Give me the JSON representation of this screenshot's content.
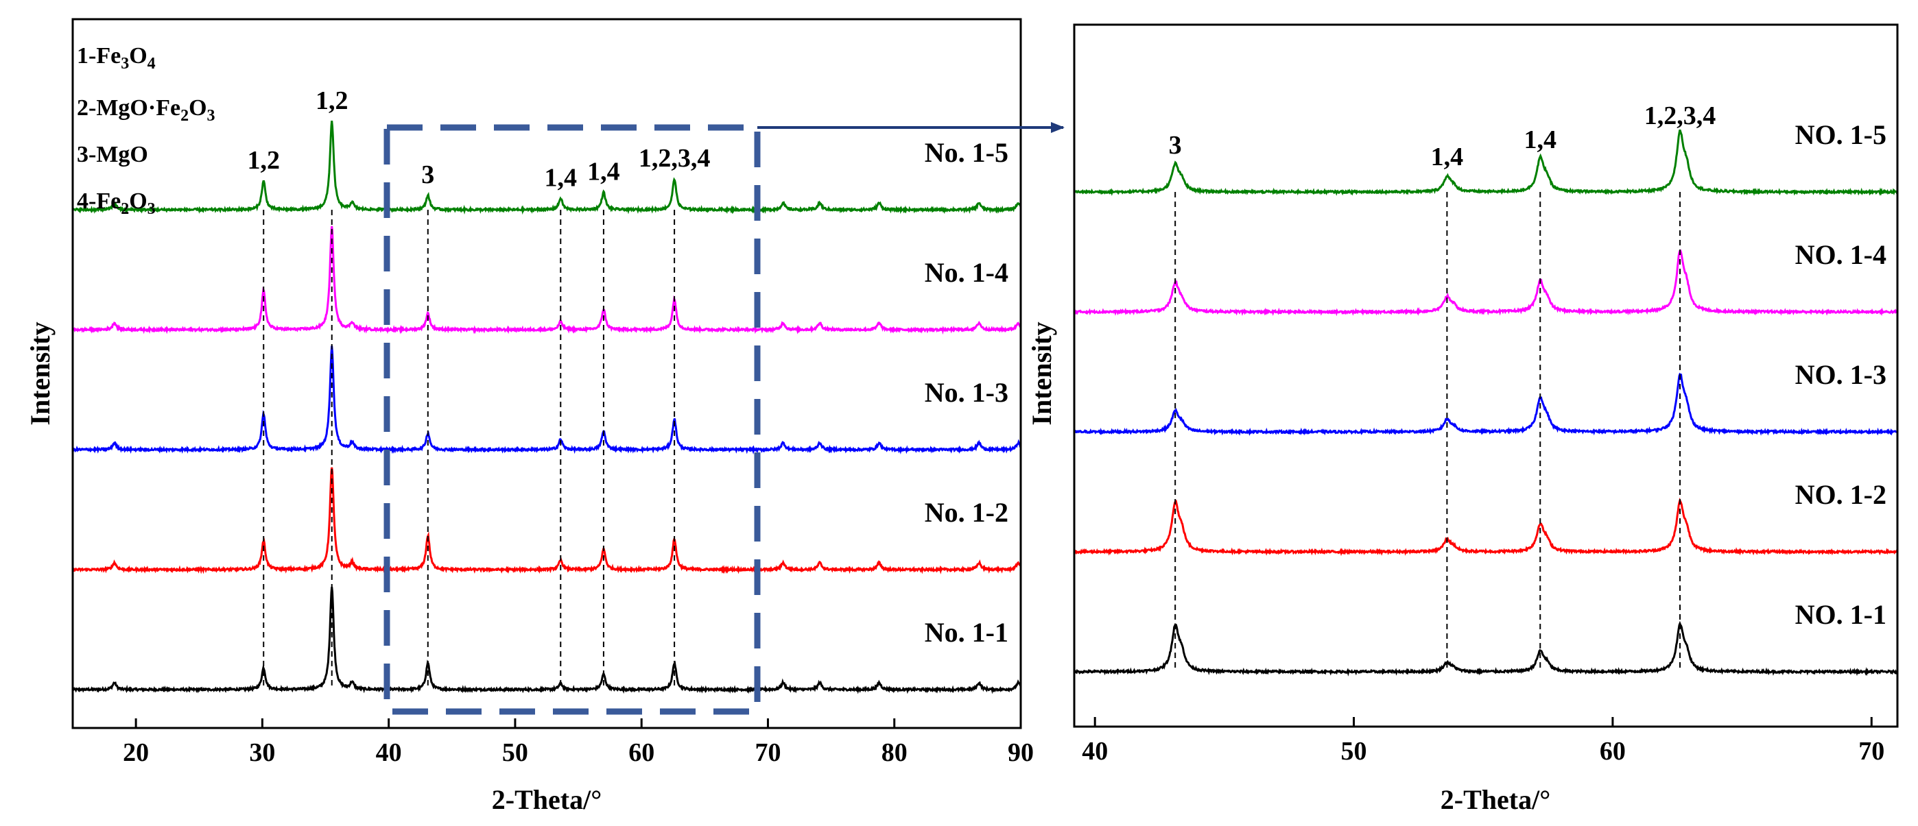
{
  "chart_data": [
    {
      "type": "line",
      "subtype": "stacked-xrd",
      "xlabel": "2-Theta/°",
      "ylabel": "Intensity",
      "xlim": [
        15,
        90
      ],
      "xticks": [
        20,
        30,
        40,
        50,
        60,
        70,
        80,
        90
      ],
      "legend": {
        "position": "top-left",
        "entries": [
          {
            "num": "1-",
            "parts": [
              [
                "Fe",
                ""
              ],
              [
                "3",
                "sub"
              ],
              [
                "O",
                ""
              ],
              [
                "4",
                "sub"
              ]
            ]
          },
          {
            "num": "2-",
            "parts": [
              [
                "MgO·Fe",
                ""
              ],
              [
                "2",
                "sub"
              ],
              [
                "O",
                ""
              ],
              [
                "3",
                "sub"
              ]
            ]
          },
          {
            "num": "3-",
            "parts": [
              [
                "MgO",
                ""
              ]
            ]
          },
          {
            "num": "4-",
            "parts": [
              [
                "Fe",
                ""
              ],
              [
                "2",
                "sub"
              ],
              [
                "O",
                ""
              ],
              [
                "3",
                "sub"
              ]
            ]
          }
        ]
      },
      "peaks": [
        {
          "x": 30.1,
          "label": "1,2"
        },
        {
          "x": 35.5,
          "label": "1,2"
        },
        {
          "x": 43.1,
          "label": "3"
        },
        {
          "x": 53.6,
          "label": "1,4"
        },
        {
          "x": 57.0,
          "label": "1,4"
        },
        {
          "x": 62.6,
          "label": "1,2,3,4"
        }
      ],
      "highlight_box": {
        "xmin": 40,
        "xmax": 69.5
      },
      "series": [
        {
          "name": "No. 1-1",
          "color": "#000000",
          "offset": 0,
          "intensities": [
            0.21,
            1.0,
            0.26,
            0.06,
            0.15,
            0.26
          ]
        },
        {
          "name": "No. 1-2",
          "color": "#ff0000",
          "offset": 1,
          "intensities": [
            0.28,
            1.0,
            0.33,
            0.09,
            0.2,
            0.3
          ]
        },
        {
          "name": "No. 1-3",
          "color": "#0000ff",
          "offset": 2,
          "intensities": [
            0.35,
            1.0,
            0.16,
            0.1,
            0.18,
            0.3
          ]
        },
        {
          "name": "No. 1-4",
          "color": "#ff00ff",
          "offset": 3,
          "intensities": [
            0.38,
            1.0,
            0.16,
            0.08,
            0.2,
            0.3
          ]
        },
        {
          "name": "No. 1-5",
          "color": "#008000",
          "offset": 4,
          "intensities": [
            0.28,
            0.86,
            0.14,
            0.11,
            0.17,
            0.3
          ]
        }
      ],
      "minor_peaks": [
        18.3,
        37.1,
        71.2,
        74.1,
        78.8,
        86.7,
        89.8
      ]
    },
    {
      "type": "line",
      "subtype": "stacked-xrd",
      "xlabel": "2-Theta/°",
      "ylabel": "Intensity",
      "xlim": [
        39.2,
        71
      ],
      "xticks": [
        40,
        50,
        60,
        70
      ],
      "peaks": [
        {
          "x": 43.1,
          "label": "3"
        },
        {
          "x": 53.6,
          "label": "1,4"
        },
        {
          "x": 57.2,
          "label": "1,4"
        },
        {
          "x": 62.6,
          "label": "1,2,3,4"
        }
      ],
      "series": [
        {
          "name": "NO. 1-1",
          "color": "#000000",
          "offset": 0,
          "intensities": [
            0.45,
            0.09,
            0.2,
            0.45
          ]
        },
        {
          "name": "NO. 1-2",
          "color": "#ff0000",
          "offset": 1,
          "intensities": [
            0.48,
            0.12,
            0.27,
            0.48
          ]
        },
        {
          "name": "NO. 1-3",
          "color": "#0000ff",
          "offset": 2,
          "intensities": [
            0.2,
            0.12,
            0.33,
            0.55
          ]
        },
        {
          "name": "NO. 1-4",
          "color": "#ff00ff",
          "offset": 3,
          "intensities": [
            0.28,
            0.15,
            0.3,
            0.58
          ]
        },
        {
          "name": "NO. 1-5",
          "color": "#008000",
          "offset": 4,
          "intensities": [
            0.27,
            0.15,
            0.33,
            0.58
          ]
        }
      ]
    }
  ]
}
